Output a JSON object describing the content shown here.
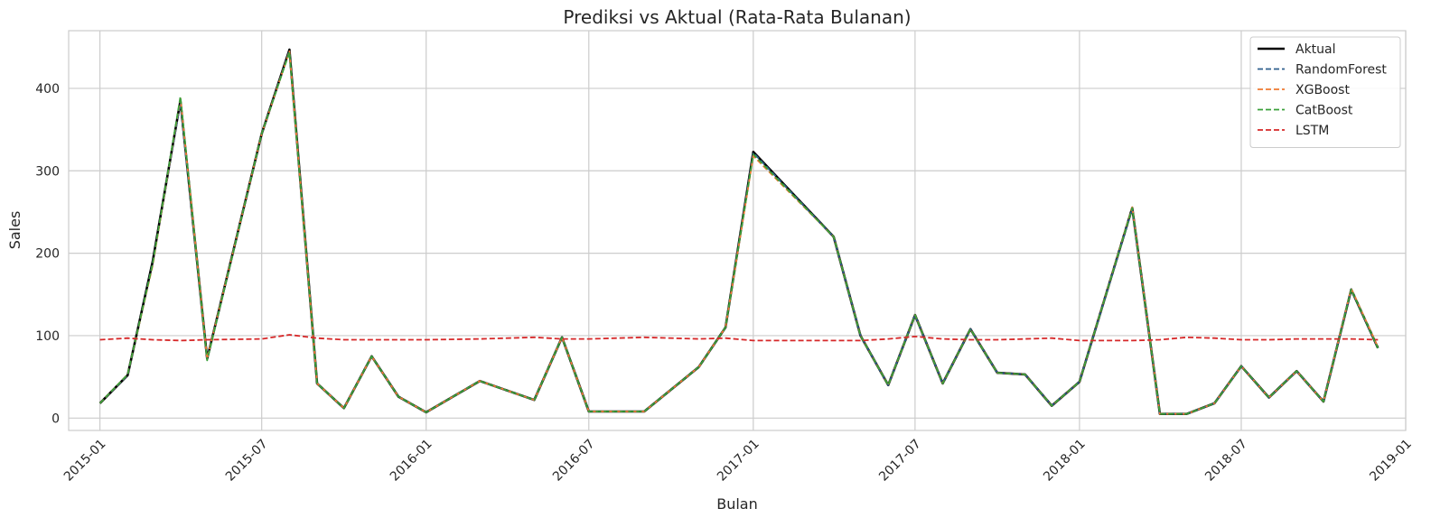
{
  "chart_data": {
    "type": "line",
    "title": "Prediksi vs Aktual (Rata-Rata Bulanan)",
    "xlabel": "Bulan",
    "ylabel": "Sales",
    "ylim": [
      -15,
      470
    ],
    "xlim": [
      "2014-11-27",
      "2019-01-01"
    ],
    "grid": true,
    "legend_position": "top-right",
    "x_ticks": [
      "2015-01",
      "2015-07",
      "2016-01",
      "2016-07",
      "2017-01",
      "2017-07",
      "2018-01",
      "2018-07",
      "2019-01"
    ],
    "y_ticks": [
      0,
      100,
      200,
      300,
      400
    ],
    "x": [
      "2015-01",
      "2015-02",
      "2015-03",
      "2015-04",
      "2015-05",
      "2015-07",
      "2015-08",
      "2015-09",
      "2015-10",
      "2015-11",
      "2015-12",
      "2016-01",
      "2016-03",
      "2016-05",
      "2016-06",
      "2016-07",
      "2016-09",
      "2016-11",
      "2016-12",
      "2017-01",
      "2017-04",
      "2017-05",
      "2017-06",
      "2017-07",
      "2017-08",
      "2017-09",
      "2017-10",
      "2017-11",
      "2017-12",
      "2018-01",
      "2018-03",
      "2018-04",
      "2018-05",
      "2018-06",
      "2018-07",
      "2018-08",
      "2018-09",
      "2018-10",
      "2018-11",
      "2018-12"
    ],
    "series": [
      {
        "name": "Aktual",
        "color": "#000000",
        "style": "solid",
        "values": [
          18,
          52,
          190,
          385,
          72,
          345,
          447,
          42,
          12,
          75,
          26,
          7,
          45,
          22,
          98,
          8,
          8,
          62,
          110,
          323,
          220,
          100,
          40,
          125,
          42,
          108,
          55,
          53,
          15,
          44,
          255,
          5,
          5,
          18,
          63,
          25,
          57,
          20,
          156,
          85
        ]
      },
      {
        "name": "RandomForest",
        "color": "#2e5f8c",
        "style": "dashed",
        "values": [
          18,
          52,
          188,
          382,
          72,
          345,
          446,
          42,
          12,
          75,
          26,
          7,
          45,
          22,
          98,
          8,
          8,
          62,
          110,
          322,
          220,
          100,
          40,
          125,
          42,
          108,
          55,
          53,
          15,
          44,
          254,
          5,
          5,
          18,
          63,
          25,
          57,
          20,
          156,
          85
        ]
      },
      {
        "name": "XGBoost",
        "color": "#f07a32",
        "style": "dashed",
        "values": [
          18,
          53,
          185,
          388,
          72,
          345,
          445,
          42,
          12,
          75,
          26,
          7,
          45,
          22,
          98,
          8,
          8,
          62,
          110,
          318,
          220,
          100,
          40,
          125,
          42,
          108,
          55,
          53,
          15,
          44,
          256,
          5,
          5,
          18,
          63,
          25,
          57,
          20,
          157,
          86
        ]
      },
      {
        "name": "CatBoost",
        "color": "#3aa03a",
        "style": "dashed",
        "values": [
          18,
          53,
          187,
          390,
          70,
          345,
          444,
          42,
          12,
          75,
          26,
          7,
          45,
          22,
          98,
          8,
          8,
          62,
          110,
          320,
          220,
          100,
          40,
          125,
          42,
          108,
          55,
          53,
          15,
          44,
          255,
          5,
          5,
          18,
          63,
          25,
          57,
          20,
          156,
          85
        ]
      },
      {
        "name": "LSTM",
        "color": "#d62728",
        "style": "dashed",
        "values": [
          95,
          97,
          95,
          94,
          95,
          96,
          101,
          97,
          95,
          95,
          95,
          95,
          96,
          98,
          96,
          96,
          98,
          96,
          97,
          94,
          94,
          94,
          96,
          99,
          96,
          95,
          95,
          96,
          97,
          94,
          94,
          95,
          98,
          97,
          95,
          95,
          96,
          96,
          96,
          95
        ]
      }
    ]
  }
}
